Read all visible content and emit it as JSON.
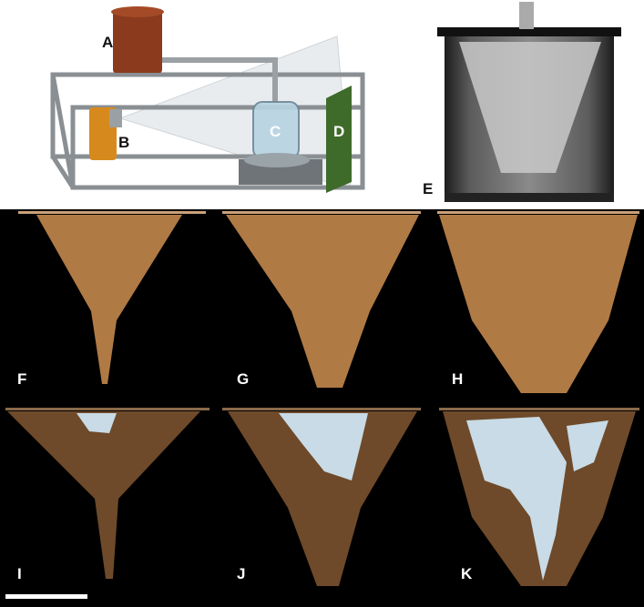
{
  "figure": {
    "panels": {
      "A": "A",
      "B": "B",
      "C": "C",
      "D": "D",
      "E": "E",
      "F": "F",
      "G": "G",
      "H": "H",
      "I": "I",
      "J": "J",
      "K": "K"
    },
    "colors": {
      "background_top": "#ffffff",
      "background_bottom": "#000000",
      "sediment": "#b07a45",
      "sediment_dark": "#6e4a2a",
      "water_phase": "#c8dbe6",
      "tank_reservoir": "#8b3a1e",
      "detector_plate": "#3f6b2a",
      "source_housing": "#d68a1d"
    },
    "scale_bar": {
      "present": true
    }
  }
}
